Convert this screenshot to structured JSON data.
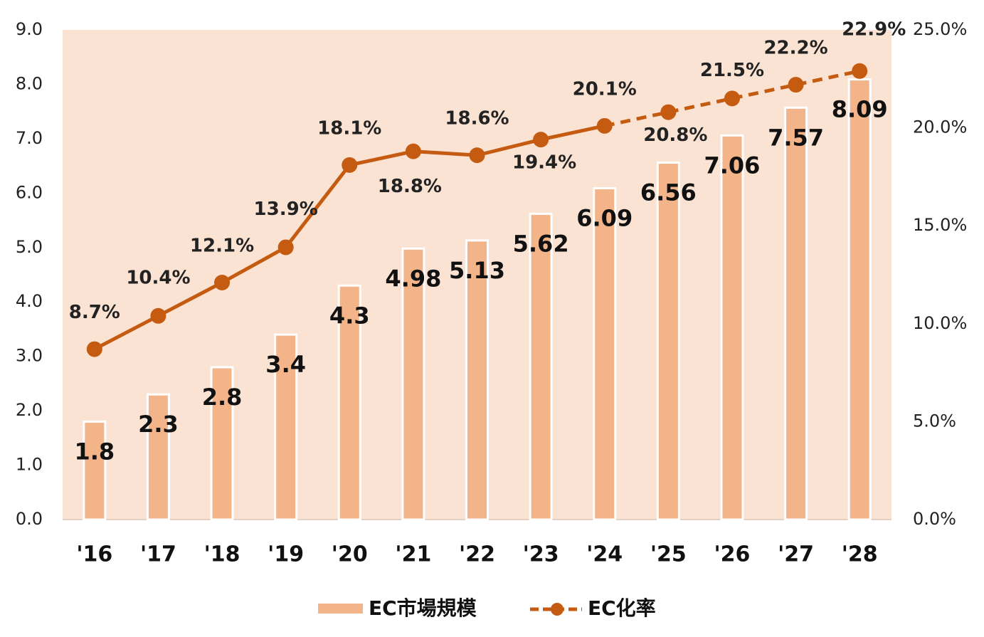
{
  "chart_data": {
    "type": "bar_line",
    "categories": [
      "'16",
      "'17",
      "'18",
      "'19",
      "'20",
      "'21",
      "'22",
      "'23",
      "'24",
      "'25",
      "'26",
      "'27",
      "'28"
    ],
    "series": [
      {
        "name": "EC市場規模",
        "type": "bar",
        "color": "#f4b48a",
        "values": [
          1.8,
          2.3,
          2.8,
          3.4,
          4.3,
          4.98,
          5.13,
          5.62,
          6.09,
          6.56,
          7.06,
          7.57,
          8.09
        ]
      },
      {
        "name": "EC化率",
        "type": "line",
        "axis": "y2",
        "color": "#c55a11",
        "dashed_from": 8,
        "values": [
          8.7,
          10.4,
          12.1,
          13.9,
          18.1,
          18.8,
          18.6,
          19.4,
          20.1,
          20.8,
          21.5,
          22.2,
          22.9
        ],
        "value_labels": [
          "8.7%",
          "10.4%",
          "12.1%",
          "13.9%",
          "18.1%",
          "18.8%",
          "18.6%",
          "19.4%",
          "20.1%",
          "20.8%",
          "21.5%",
          "22.2%",
          "22.9%"
        ]
      }
    ],
    "ylim": [
      0,
      9
    ],
    "yticks": [
      {
        "value": 0,
        "label": "0.0"
      },
      {
        "value": 1,
        "label": "1.0"
      },
      {
        "value": 2,
        "label": "2.0"
      },
      {
        "value": 3,
        "label": "3.0"
      },
      {
        "value": 4,
        "label": "4.0"
      },
      {
        "value": 5,
        "label": "5.0"
      },
      {
        "value": 6,
        "label": "6.0"
      },
      {
        "value": 7,
        "label": "7.0"
      },
      {
        "value": 8,
        "label": "8.0"
      },
      {
        "value": 9,
        "label": "9.0"
      }
    ],
    "y2lim": [
      0,
      25
    ],
    "y2ticks": [
      {
        "value": 0,
        "label": "0.0%"
      },
      {
        "value": 5,
        "label": "5.0%"
      },
      {
        "value": 10,
        "label": "10.0%"
      },
      {
        "value": 15,
        "label": "15.0%"
      },
      {
        "value": 20,
        "label": "20.0%"
      },
      {
        "value": 25,
        "label": "25.0%"
      }
    ],
    "background": "#fbe3d4",
    "legend": "bottom"
  }
}
